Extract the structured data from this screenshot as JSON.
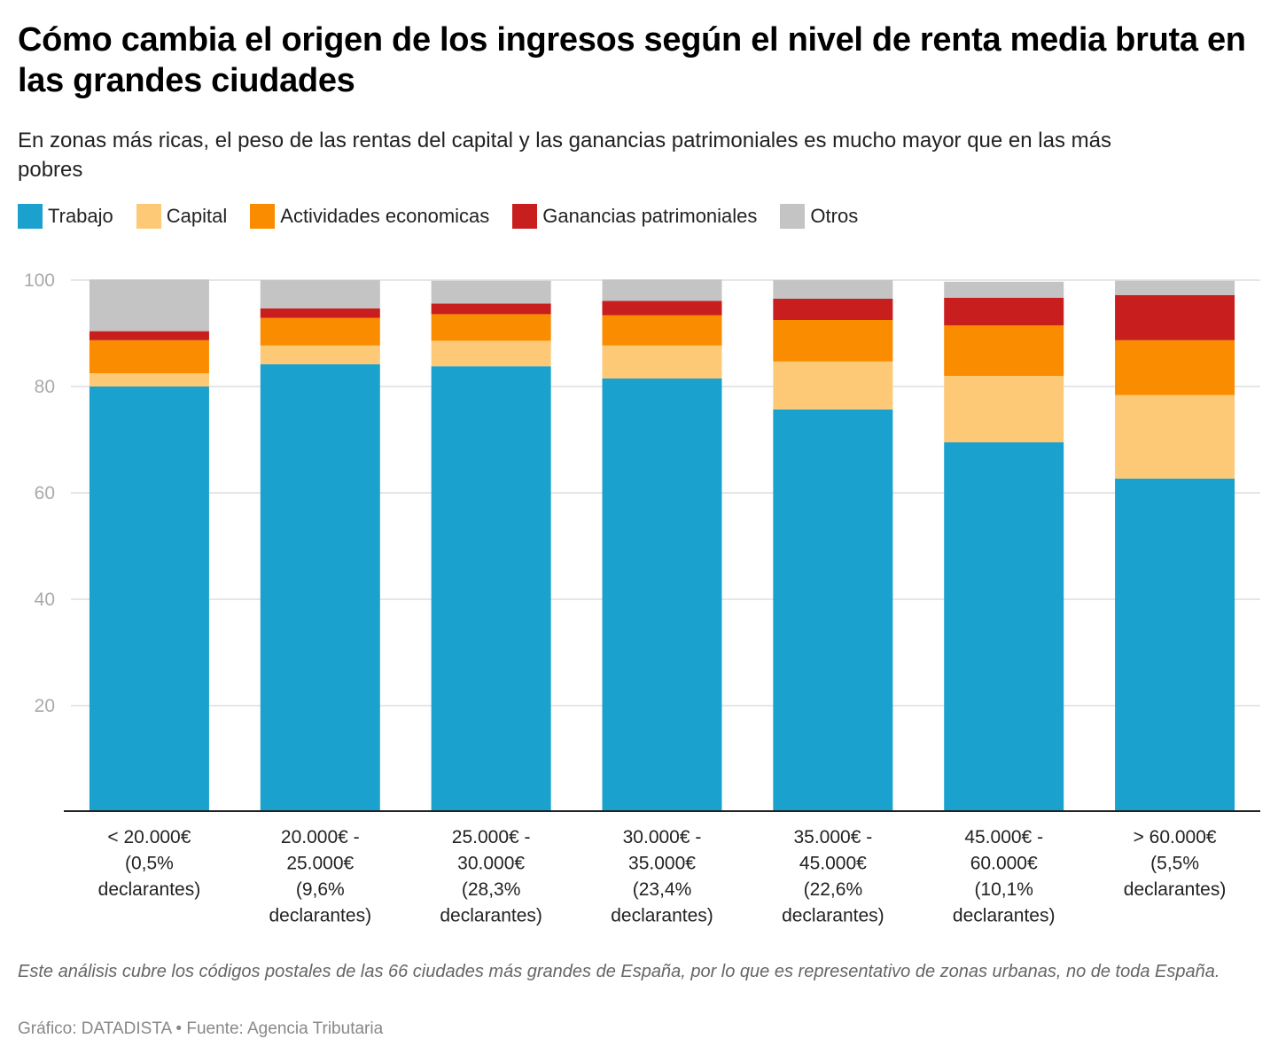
{
  "title": "Cómo cambia el origen de los ingresos según el nivel de renta media bruta en las grandes ciudades",
  "subtitle": "En zonas más ricas, el peso de las rentas del capital y las ganancias patrimoniales es mucho mayor que en las más pobres",
  "footer_note": "Este análisis cubre los códigos postales de las 66 ciudades más grandes de España, por lo que es representativo de zonas urbanas, no de toda España.",
  "credit": "Gráfico: DATADISTA • Fuente: Agencia Tributaria",
  "chart_data": {
    "type": "bar",
    "stacked": true,
    "title": "Cómo cambia el origen de los ingresos según el nivel de renta media bruta en las grandes ciudades",
    "xlabel": "",
    "ylabel": "",
    "ylim": [
      0,
      100
    ],
    "yticks": [
      20,
      40,
      60,
      80,
      100
    ],
    "grid": true,
    "legend_position": "top-left",
    "categories": [
      [
        "< 20.000€",
        "(0,5%",
        "declarantes)"
      ],
      [
        "20.000€ -",
        "25.000€",
        "(9,6%",
        "declarantes)"
      ],
      [
        "25.000€ -",
        "30.000€",
        "(28,3%",
        "declarantes)"
      ],
      [
        "30.000€ -",
        "35.000€",
        "(23,4%",
        "declarantes)"
      ],
      [
        "35.000€ -",
        "45.000€",
        "(22,6%",
        "declarantes)"
      ],
      [
        "45.000€ -",
        "60.000€",
        "(10,1%",
        "declarantes)"
      ],
      [
        "> 60.000€",
        "(5,5%",
        "declarantes)"
      ]
    ],
    "series": [
      {
        "name": "Trabajo",
        "color": "#1aa1cd",
        "values": [
          80.0,
          84.2,
          83.8,
          81.5,
          75.7,
          69.5,
          62.7
        ]
      },
      {
        "name": "Capital",
        "color": "#fdc977",
        "values": [
          2.5,
          3.5,
          4.8,
          6.2,
          9.0,
          12.5,
          15.7
        ]
      },
      {
        "name": "Actividades economicas",
        "color": "#fa8c00",
        "values": [
          6.2,
          5.2,
          5.0,
          5.7,
          7.8,
          9.5,
          10.3
        ]
      },
      {
        "name": "Ganancias patrimoniales",
        "color": "#c81e1e",
        "values": [
          1.7,
          1.8,
          2.0,
          2.7,
          4.0,
          5.2,
          8.5
        ]
      },
      {
        "name": "Otros",
        "color": "#c4c4c4",
        "values": [
          9.7,
          5.3,
          4.3,
          4.0,
          3.5,
          3.0,
          2.7
        ]
      }
    ]
  }
}
